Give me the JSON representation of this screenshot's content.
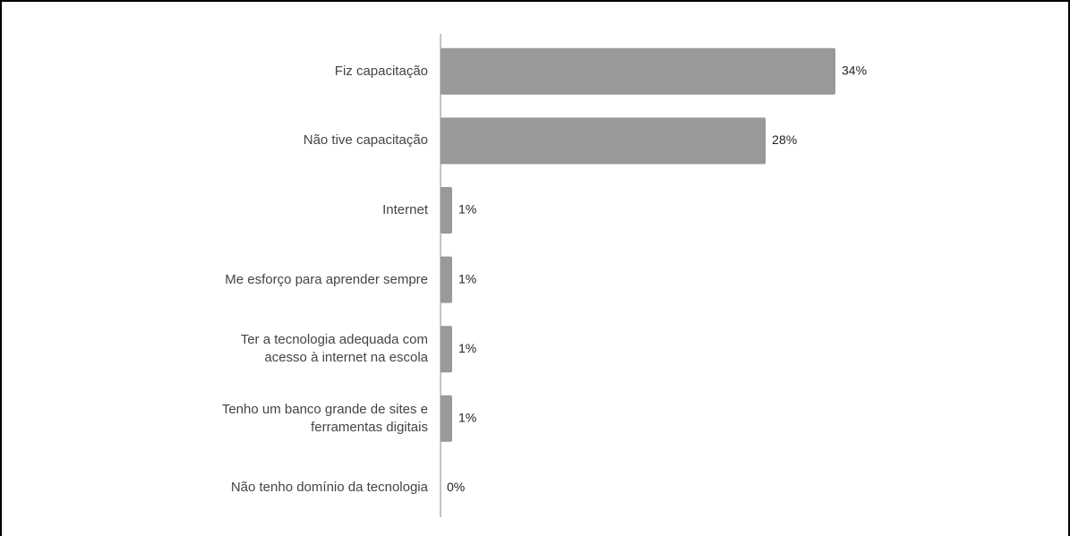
{
  "chart_data": {
    "type": "bar",
    "orientation": "horizontal",
    "categories": [
      "Fiz capacitação",
      "Não tive capacitação",
      "Internet",
      "Me esforço para aprender sempre",
      "Ter a tecnologia adequada com\nacesso à internet na escola",
      "Tenho um banco grande de sites e\nferramentas digitais",
      "Não tenho domínio da tecnologia"
    ],
    "values": [
      34,
      28,
      1,
      1,
      1,
      1,
      0
    ],
    "value_labels": [
      "34%",
      "28%",
      "1%",
      "1%",
      "1%",
      "1%",
      "0%"
    ],
    "color": "#999999"
  }
}
